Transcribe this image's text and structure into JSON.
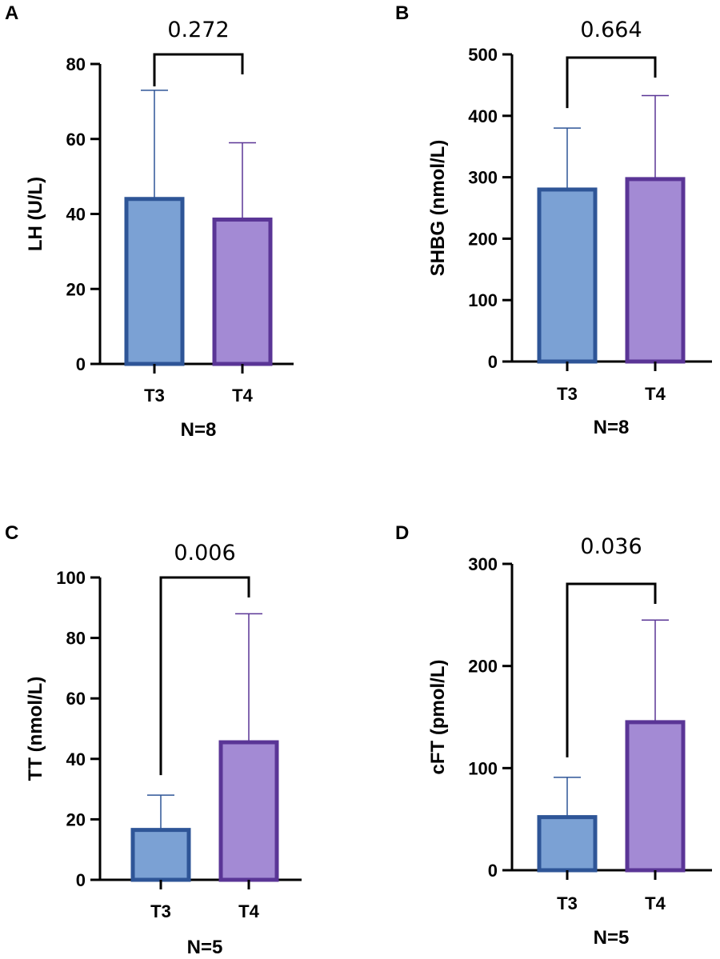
{
  "colors": {
    "t3_fill": "#7ba1d4",
    "t3_edge": "#2e5597",
    "t4_fill": "#a38ad4",
    "t4_edge": "#5a3596"
  },
  "chart_data": [
    {
      "type": "bar",
      "panel": "A",
      "categories": [
        "T3",
        "T4"
      ],
      "values": [
        44,
        38.5
      ],
      "error_upper": [
        73,
        59
      ],
      "ylabel": "LH (U/L)",
      "xlabel": "N=8",
      "ylim": [
        0,
        80
      ],
      "yticks": [
        0,
        20,
        40,
        60,
        80
      ],
      "p_value": "0.272"
    },
    {
      "type": "bar",
      "panel": "B",
      "categories": [
        "T3",
        "T4"
      ],
      "values": [
        280,
        297
      ],
      "error_upper": [
        380,
        433
      ],
      "ylabel": "SHBG (nmol/L)",
      "xlabel": "N=8",
      "ylim": [
        0,
        500
      ],
      "yticks": [
        0,
        100,
        200,
        300,
        400,
        500
      ],
      "p_value": "0.664"
    },
    {
      "type": "bar",
      "panel": "C",
      "categories": [
        "T3",
        "T4"
      ],
      "values": [
        16.5,
        45.5
      ],
      "error_upper": [
        28,
        88
      ],
      "ylabel": "TT (nmol/L)",
      "xlabel": "N=5",
      "ylim": [
        0,
        100
      ],
      "yticks": [
        0,
        20,
        40,
        60,
        80,
        100
      ],
      "p_value": "0.006"
    },
    {
      "type": "bar",
      "panel": "D",
      "categories": [
        "T3",
        "T4"
      ],
      "values": [
        52,
        145
      ],
      "error_upper": [
        91,
        245
      ],
      "ylabel": "cFT (pmol/L)",
      "xlabel": "N=5",
      "ylim": [
        0,
        300
      ],
      "yticks": [
        0,
        100,
        200,
        300
      ],
      "p_value": "0.036"
    }
  ]
}
